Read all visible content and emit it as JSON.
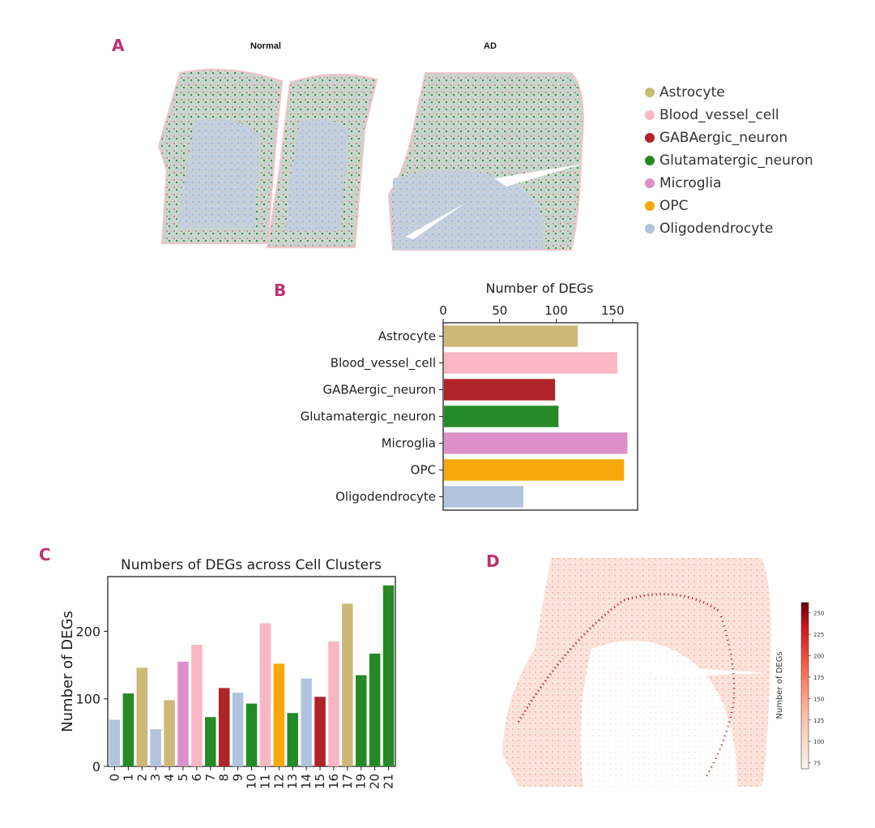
{
  "panels": {
    "a": {
      "label": "A",
      "title_normal": "Normal",
      "title_ad": "AD"
    },
    "b": {
      "label": "B"
    },
    "c": {
      "label": "C"
    },
    "d": {
      "label": "D"
    }
  },
  "legend": {
    "items": [
      {
        "name": "Astrocyte",
        "color": "#cdb877"
      },
      {
        "name": "Blood_vessel_cell",
        "color": "#f9b7c3"
      },
      {
        "name": "GABAergic_neuron",
        "color": "#b02328"
      },
      {
        "name": "Glutamatergic_neuron",
        "color": "#258a25"
      },
      {
        "name": "Microglia",
        "color": "#dd8fca"
      },
      {
        "name": "OPC",
        "color": "#f7a80a"
      },
      {
        "name": "Oligodendrocyte",
        "color": "#b0c4de"
      }
    ]
  },
  "chart_data": [
    {
      "id": "B",
      "type": "bar",
      "orientation": "horizontal",
      "title": "Number of DEGs",
      "categories": [
        "Astrocyte",
        "Blood_vessel_cell",
        "GABAergic_neuron",
        "Glutamatergic_neuron",
        "Microglia",
        "OPC",
        "Oligodendrocyte"
      ],
      "values": [
        119,
        154,
        99,
        102,
        163,
        160,
        71
      ],
      "colors": [
        "#cdb877",
        "#f9b7c3",
        "#b02328",
        "#258a25",
        "#dd8fca",
        "#f7a80a",
        "#b0c4de"
      ],
      "xlim": [
        0,
        172
      ],
      "xticks": [
        "0",
        "50",
        "100",
        "150"
      ]
    },
    {
      "id": "C",
      "type": "bar",
      "title": "Numbers of DEGs across Cell Clusters",
      "xlabel": "",
      "ylabel": "Number of DEGs",
      "categories": [
        "0",
        "1",
        "2",
        "3",
        "4",
        "5",
        "6",
        "7",
        "8",
        "9",
        "10",
        "11",
        "12",
        "13",
        "14",
        "15",
        "16",
        "17",
        "19",
        "20",
        "21"
      ],
      "values": [
        69,
        108,
        146,
        55,
        98,
        155,
        180,
        73,
        116,
        109,
        93,
        212,
        152,
        79,
        130,
        103,
        185,
        241,
        135,
        167,
        268
      ],
      "colors": [
        "#b0c4de",
        "#258a25",
        "#cdb877",
        "#b0c4de",
        "#cdb877",
        "#dd8fca",
        "#f9b7c3",
        "#258a25",
        "#b02328",
        "#b0c4de",
        "#258a25",
        "#f9b7c3",
        "#f7a80a",
        "#258a25",
        "#b0c4de",
        "#b02328",
        "#f9b7c3",
        "#cdb877",
        "#258a25",
        "#258a25",
        "#258a25"
      ],
      "ylim": [
        0,
        281
      ],
      "yticks": [
        "0",
        "100",
        "200"
      ]
    },
    {
      "id": "D",
      "type": "heatmap",
      "colorbar_label": "Number of DEGs",
      "colorbar_ticks": [
        "75",
        "100",
        "125",
        "150",
        "175",
        "200",
        "225",
        "250"
      ],
      "colorbar_range": [
        68,
        262
      ]
    }
  ]
}
